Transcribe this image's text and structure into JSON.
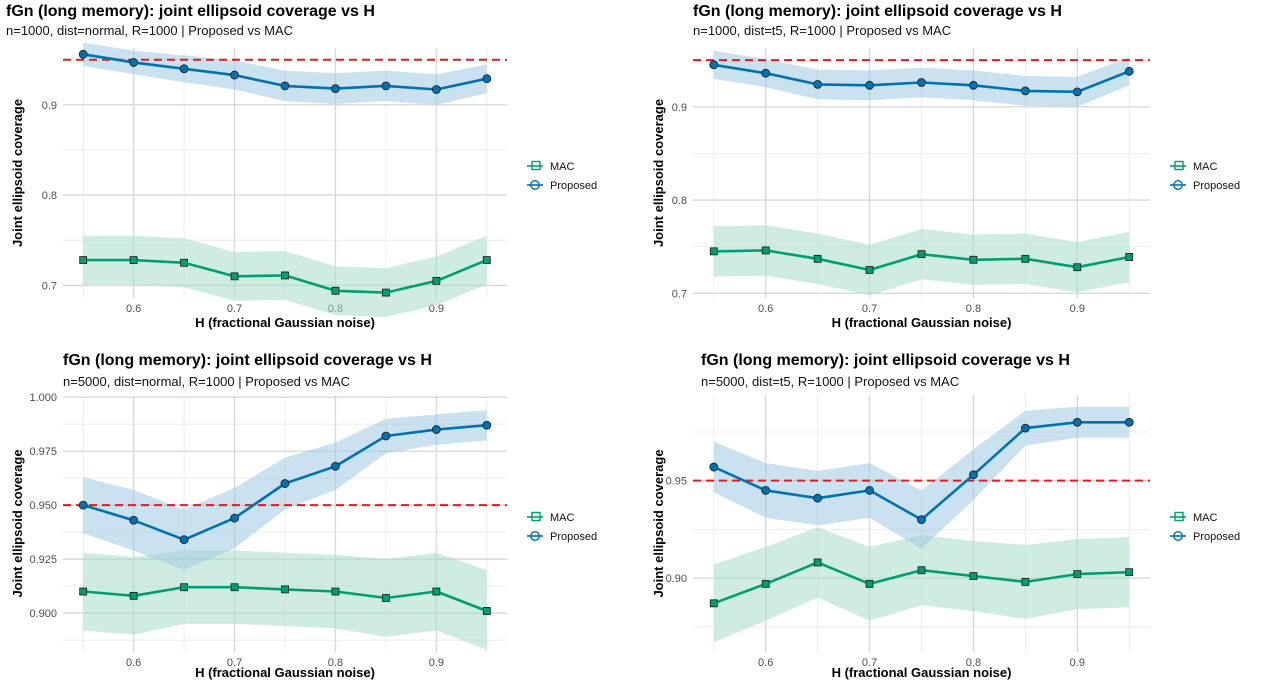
{
  "colors": {
    "proposed": "#0072B2",
    "proposed_band": "#9ecae1",
    "mac": "#009E73",
    "mac_band": "#a8dcc6",
    "reference": "#e41a1c",
    "grid_major": "#d9d9d9",
    "grid_minor": "#ececec"
  },
  "chart_data": [
    {
      "type": "line",
      "title": "fGn (long memory): joint ellipsoid coverage vs H",
      "subtitle": "n=1000, dist=normal, R=1000 | Proposed vs MAC",
      "xlabel": "H (fractional Gaussian noise)",
      "ylabel": "Joint ellipsoid coverage",
      "x": [
        0.55,
        0.6,
        0.65,
        0.7,
        0.75,
        0.8,
        0.85,
        0.9,
        0.95
      ],
      "xticks": [
        0.6,
        0.7,
        0.8,
        0.9
      ],
      "xtick_labels": [
        "0.6",
        "0.7",
        "0.8",
        "0.9"
      ],
      "yticks": [
        0.7,
        0.8,
        0.9
      ],
      "ytick_labels": [
        "0.7",
        "0.8",
        "0.9"
      ],
      "xlim": [
        0.53,
        0.97
      ],
      "ylim": [
        0.686,
        0.963
      ],
      "reference_line": 0.95,
      "legend_position": "right",
      "grid": true,
      "series": [
        {
          "name": "MAC",
          "marker": "square",
          "values": [
            0.728,
            0.728,
            0.725,
            0.71,
            0.711,
            0.694,
            0.692,
            0.705,
            0.728
          ],
          "lower": [
            0.701,
            0.701,
            0.698,
            0.683,
            0.684,
            0.667,
            0.665,
            0.678,
            0.701
          ],
          "upper": [
            0.755,
            0.755,
            0.752,
            0.737,
            0.738,
            0.721,
            0.719,
            0.732,
            0.755
          ]
        },
        {
          "name": "Proposed",
          "marker": "circle",
          "values": [
            0.956,
            0.947,
            0.94,
            0.933,
            0.921,
            0.918,
            0.921,
            0.917,
            0.929
          ],
          "lower": [
            0.943,
            0.934,
            0.925,
            0.917,
            0.904,
            0.901,
            0.904,
            0.9,
            0.913
          ],
          "upper": [
            0.969,
            0.96,
            0.955,
            0.949,
            0.938,
            0.935,
            0.938,
            0.934,
            0.945
          ]
        }
      ]
    },
    {
      "type": "line",
      "title": "fGn (long memory): joint ellipsoid coverage vs H",
      "subtitle": "n=1000, dist=t5, R=1000 | Proposed vs MAC",
      "xlabel": "H (fractional Gaussian noise)",
      "ylabel": "Joint ellipsoid coverage",
      "x": [
        0.55,
        0.6,
        0.65,
        0.7,
        0.75,
        0.8,
        0.85,
        0.9,
        0.95
      ],
      "xticks": [
        0.6,
        0.7,
        0.8,
        0.9
      ],
      "xtick_labels": [
        "0.6",
        "0.7",
        "0.8",
        "0.9"
      ],
      "yticks": [
        0.7,
        0.8,
        0.9
      ],
      "ytick_labels": [
        "0.7",
        "0.8",
        "0.9"
      ],
      "xlim": [
        0.53,
        0.97
      ],
      "ylim": [
        0.695,
        0.963
      ],
      "reference_line": 0.95,
      "legend_position": "right",
      "grid": true,
      "series": [
        {
          "name": "MAC",
          "marker": "square",
          "values": [
            0.745,
            0.746,
            0.737,
            0.725,
            0.742,
            0.736,
            0.737,
            0.728,
            0.739
          ],
          "lower": [
            0.718,
            0.719,
            0.71,
            0.698,
            0.715,
            0.709,
            0.71,
            0.701,
            0.712
          ],
          "upper": [
            0.772,
            0.773,
            0.764,
            0.752,
            0.769,
            0.763,
            0.764,
            0.755,
            0.766
          ]
        },
        {
          "name": "Proposed",
          "marker": "circle",
          "values": [
            0.945,
            0.936,
            0.924,
            0.923,
            0.926,
            0.923,
            0.917,
            0.916,
            0.938
          ],
          "lower": [
            0.93,
            0.921,
            0.908,
            0.907,
            0.91,
            0.907,
            0.901,
            0.9,
            0.923
          ],
          "upper": [
            0.96,
            0.951,
            0.94,
            0.939,
            0.942,
            0.939,
            0.933,
            0.932,
            0.953
          ]
        }
      ]
    },
    {
      "type": "line",
      "title": "fGn (long memory): joint ellipsoid coverage vs H",
      "subtitle": "n=5000, dist=normal, R=1000 | Proposed vs MAC",
      "xlabel": "H (fractional Gaussian noise)",
      "ylabel": "Joint ellipsoid coverage",
      "x": [
        0.55,
        0.6,
        0.65,
        0.7,
        0.75,
        0.8,
        0.85,
        0.9,
        0.95
      ],
      "xticks": [
        0.6,
        0.7,
        0.8,
        0.9
      ],
      "xtick_labels": [
        "0.6",
        "0.7",
        "0.8",
        "0.9"
      ],
      "yticks": [
        0.9,
        0.925,
        0.95,
        0.975,
        1.0
      ],
      "ytick_labels": [
        "0.900",
        "0.925",
        "0.950",
        "0.975",
        "1.000"
      ],
      "xlim": [
        0.53,
        0.97
      ],
      "ylim": [
        0.882,
        1.001
      ],
      "reference_line": 0.95,
      "legend_position": "right",
      "grid": true,
      "series": [
        {
          "name": "MAC",
          "marker": "square",
          "values": [
            0.91,
            0.908,
            0.912,
            0.912,
            0.911,
            0.91,
            0.907,
            0.91,
            0.901
          ],
          "lower": [
            0.892,
            0.89,
            0.895,
            0.895,
            0.894,
            0.893,
            0.889,
            0.892,
            0.883
          ],
          "upper": [
            0.928,
            0.926,
            0.929,
            0.929,
            0.928,
            0.927,
            0.925,
            0.928,
            0.92
          ]
        },
        {
          "name": "Proposed",
          "marker": "circle",
          "values": [
            0.95,
            0.943,
            0.934,
            0.944,
            0.96,
            0.968,
            0.982,
            0.985,
            0.987
          ],
          "lower": [
            0.937,
            0.929,
            0.92,
            0.93,
            0.948,
            0.957,
            0.974,
            0.978,
            0.98
          ],
          "upper": [
            0.963,
            0.957,
            0.948,
            0.958,
            0.972,
            0.979,
            0.99,
            0.992,
            0.994
          ]
        }
      ]
    },
    {
      "type": "line",
      "title": "fGn (long memory): joint ellipsoid coverage vs H",
      "subtitle": "n=5000, dist=t5, R=1000 | Proposed vs MAC",
      "xlabel": "H (fractional Gaussian noise)",
      "ylabel": "Joint ellipsoid coverage",
      "x": [
        0.55,
        0.6,
        0.65,
        0.7,
        0.75,
        0.8,
        0.85,
        0.9,
        0.95
      ],
      "xticks": [
        0.6,
        0.7,
        0.8,
        0.9
      ],
      "xtick_labels": [
        "0.6",
        "0.7",
        "0.8",
        "0.9"
      ],
      "yticks": [
        0.9,
        0.95
      ],
      "ytick_labels": [
        "0.90",
        "0.95"
      ],
      "xlim": [
        0.53,
        0.97
      ],
      "ylim": [
        0.862,
        0.994
      ],
      "reference_line": 0.95,
      "legend_position": "right",
      "grid": true,
      "series": [
        {
          "name": "MAC",
          "marker": "square",
          "values": [
            0.887,
            0.897,
            0.908,
            0.897,
            0.904,
            0.901,
            0.898,
            0.902,
            0.903
          ],
          "lower": [
            0.867,
            0.878,
            0.89,
            0.878,
            0.886,
            0.883,
            0.879,
            0.884,
            0.885
          ],
          "upper": [
            0.907,
            0.916,
            0.926,
            0.916,
            0.922,
            0.919,
            0.917,
            0.92,
            0.921
          ]
        },
        {
          "name": "Proposed",
          "marker": "circle",
          "values": [
            0.957,
            0.945,
            0.941,
            0.945,
            0.93,
            0.953,
            0.977,
            0.98,
            0.98
          ],
          "lower": [
            0.944,
            0.931,
            0.927,
            0.931,
            0.915,
            0.94,
            0.968,
            0.972,
            0.972
          ],
          "upper": [
            0.97,
            0.959,
            0.955,
            0.959,
            0.945,
            0.966,
            0.986,
            0.988,
            0.988
          ]
        }
      ]
    }
  ]
}
